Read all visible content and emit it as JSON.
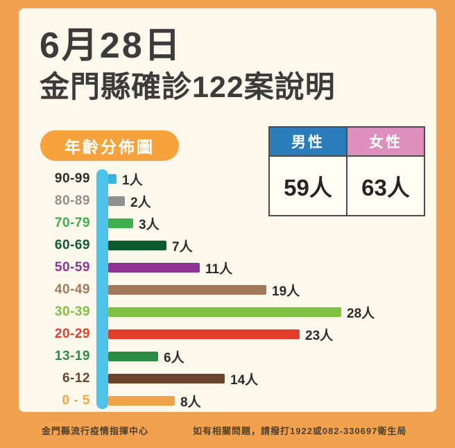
{
  "title": {
    "line1": "6月28日",
    "line2": "金門縣確診122案說明"
  },
  "age_badge": "年齡分佈圖",
  "gender_table": {
    "male": {
      "label": "男性",
      "value": "59人",
      "header_color": "#2b7cba"
    },
    "female": {
      "label": "女性",
      "value": "63人",
      "header_color": "#dd8fbe"
    }
  },
  "footer": {
    "left": "金門縣流行疫情指揮中心",
    "right": "如有相關問題，請撥打1922或082-330697衛生局"
  },
  "colors": {
    "frame": "#f2a24f",
    "panel_bg": "#fcf8ec",
    "badge_bg": "#f6a33e",
    "title_text": "#3b3b3b",
    "axis": "#4ec3e9"
  },
  "chart_data": {
    "type": "bar",
    "orientation": "horizontal",
    "title": "年齡分佈圖",
    "categories": [
      "90-99",
      "80-89",
      "70-79",
      "60-69",
      "50-59",
      "40-49",
      "30-39",
      "20-29",
      "13-19",
      "6-12",
      "0 - 5"
    ],
    "values": [
      1,
      2,
      3,
      7,
      11,
      19,
      28,
      23,
      6,
      14,
      8
    ],
    "value_labels": [
      "1人",
      "2人",
      "3人",
      "7人",
      "11人",
      "19人",
      "28人",
      "23人",
      "6人",
      "14人",
      "8人"
    ],
    "bar_colors": [
      "#36b3e3",
      "#8f8f8f",
      "#3fae4d",
      "#0e5a2f",
      "#8c3494",
      "#a3795a",
      "#7fc242",
      "#e23c2d",
      "#2c8c43",
      "#6a452c",
      "#f0a449"
    ],
    "label_colors": [
      "#2b2b2b",
      "#8f8f8f",
      "#3fae4d",
      "#0e5a2f",
      "#8c3494",
      "#a3795a",
      "#7fc242",
      "#e23c2d",
      "#2c8c43",
      "#6a452c",
      "#f0a449"
    ],
    "axis_color": "#4ec3e9",
    "xlim": [
      0,
      28
    ],
    "grid": false,
    "legend": false
  }
}
